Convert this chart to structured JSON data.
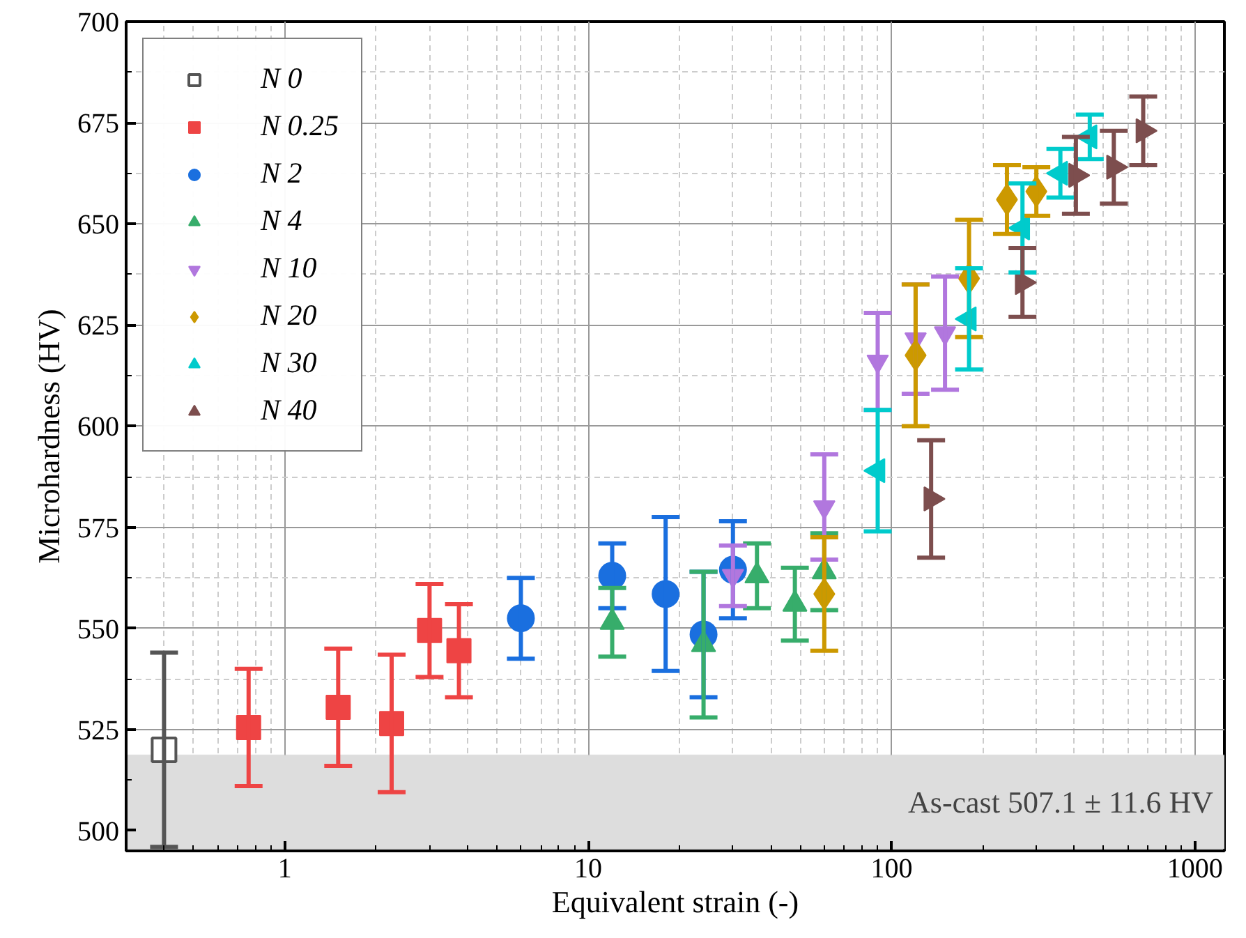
{
  "chart_data": {
    "type": "scatter",
    "xlabel": "Equivalent strain (-)",
    "ylabel": "Microhardness (HV)",
    "log": "x",
    "xlim": [
      0.3,
      1250
    ],
    "xticks": [
      1,
      10,
      100,
      1000
    ],
    "ylim": [
      495,
      700
    ],
    "yticks": [
      500,
      525,
      550,
      575,
      600,
      625,
      650,
      675,
      700
    ],
    "grid": true,
    "legend": "top left",
    "bands": [
      {
        "axis": "y",
        "from": 495.5,
        "to": 518.7,
        "label": "As-cast 507.1 ± 11.6 HV",
        "color": "#dddddd"
      }
    ],
    "series": [
      {
        "name": "N 0",
        "color": "#555555",
        "marker": "square-open",
        "x": [
          0.4
        ],
        "values": [
          520
        ],
        "errors": [
          24
        ]
      },
      {
        "name": "N 0.25",
        "color": "#ee4444",
        "marker": "square",
        "x": [
          0.76,
          1.5,
          2.25,
          3.0,
          3.75
        ],
        "values": [
          525.5,
          530.5,
          526.5,
          549.5,
          544.5
        ],
        "errors": [
          14.5,
          14.5,
          17,
          11.5,
          11.5
        ]
      },
      {
        "name": "N 2",
        "color": "#1a6fdf",
        "marker": "circle",
        "x": [
          6,
          12,
          18,
          24,
          30
        ],
        "values": [
          552.5,
          563,
          558.5,
          548.5,
          564.5
        ],
        "errors": [
          10,
          8,
          19,
          15.5,
          12
        ]
      },
      {
        "name": "N 4",
        "color": "#37ad6b",
        "marker": "triangle",
        "x": [
          12,
          24,
          36,
          48,
          60
        ],
        "values": [
          551.5,
          546,
          563,
          556,
          564
        ],
        "errors": [
          8.5,
          18,
          8,
          9,
          9.5
        ]
      },
      {
        "name": "N 10",
        "color": "#b177de",
        "marker": "triangle-down",
        "x": [
          30,
          60,
          90,
          120,
          150
        ],
        "values": [
          563,
          580,
          616,
          621.5,
          623
        ],
        "errors": [
          7.5,
          13,
          12,
          13.5,
          14
        ]
      },
      {
        "name": "N 20",
        "color": "#cc9900",
        "marker": "diamond",
        "x": [
          60,
          120,
          180,
          240,
          300
        ],
        "values": [
          558.5,
          617.5,
          636.5,
          656,
          658
        ],
        "errors": [
          14,
          17.5,
          14.5,
          8.5,
          6
        ]
      },
      {
        "name": "N 30",
        "color": "#00cbcc",
        "marker": "triangle-left",
        "x": [
          90,
          180,
          270,
          360,
          450
        ],
        "values": [
          589,
          626.5,
          649,
          662.5,
          671.5
        ],
        "errors": [
          15,
          12.5,
          11,
          6,
          5.5
        ]
      },
      {
        "name": "N 40",
        "color": "#7d4e4e",
        "marker": "triangle-right",
        "x": [
          135,
          270,
          405,
          540,
          675
        ],
        "values": [
          582,
          635.5,
          662,
          664,
          673
        ],
        "errors": [
          14.5,
          8.5,
          9.5,
          9,
          8.5
        ]
      }
    ]
  }
}
